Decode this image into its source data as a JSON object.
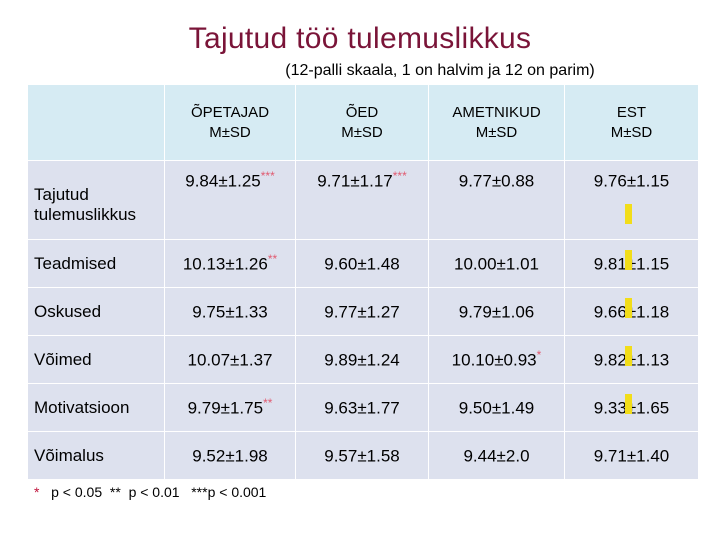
{
  "title": "Tajutud töö tulemuslikkus",
  "subtitle": "(12-palli skaala, 1 on halvim ja 12 on parim)",
  "table": {
    "headers": [
      {
        "line1": "ÕPETAJAD",
        "line2": "M±SD"
      },
      {
        "line1": "ÕED",
        "line2": "M±SD"
      },
      {
        "line1": "AMETNIKUD",
        "line2": "M±SD"
      },
      {
        "line1": "EST",
        "line2": "M±SD"
      }
    ],
    "rows": [
      {
        "label": "Tajutud tulemuslikkus",
        "cells": [
          {
            "value": "9.84±1.25",
            "star": "***"
          },
          {
            "value": "9.71±1.17",
            "star": "***"
          },
          {
            "value": "9.77±0.88",
            "star": ""
          },
          {
            "value": "9.76±1.15",
            "star": ""
          }
        ]
      },
      {
        "label": "Teadmised",
        "cells": [
          {
            "value": "10.13±1.26",
            "star": "**"
          },
          {
            "value": "9.60±1.48",
            "star": ""
          },
          {
            "value": "10.00±1.01",
            "star": ""
          },
          {
            "value": "9.81±1.15",
            "star": ""
          }
        ]
      },
      {
        "label": "Oskused",
        "cells": [
          {
            "value": "9.75±1.33",
            "star": ""
          },
          {
            "value": "9.77±1.27",
            "star": ""
          },
          {
            "value": "9.79±1.06",
            "star": ""
          },
          {
            "value": "9.66±1.18",
            "star": ""
          }
        ]
      },
      {
        "label": "Võimed",
        "cells": [
          {
            "value": "10.07±1.37",
            "star": ""
          },
          {
            "value": "9.89±1.24",
            "star": ""
          },
          {
            "value": "10.10±0.93",
            "star": "*"
          },
          {
            "value": "9.82±1.13",
            "star": ""
          }
        ]
      },
      {
        "label": "Motivatsioon",
        "cells": [
          {
            "value": "9.79±1.75",
            "star": "**"
          },
          {
            "value": "9.63±1.77",
            "star": ""
          },
          {
            "value": "9.50±1.49",
            "star": ""
          },
          {
            "value": "9.33±1.65",
            "star": ""
          }
        ]
      },
      {
        "label": "Võimalus",
        "cells": [
          {
            "value": "9.52±1.98",
            "star": ""
          },
          {
            "value": "9.57±1.58",
            "star": ""
          },
          {
            "value": "9.44±2.0",
            "star": ""
          },
          {
            "value": "9.71±1.40",
            "star": ""
          }
        ]
      }
    ]
  },
  "footnote": {
    "star": "*",
    "text": "p < 0.05  **  p < 0.01   ***p < 0.001"
  },
  "colors": {
    "title": "#7a1438",
    "header_bg": "#d6ebf3",
    "body_bg": "#dde1ee",
    "star": "#e05a70",
    "marker_bar": "#f2dd19"
  }
}
